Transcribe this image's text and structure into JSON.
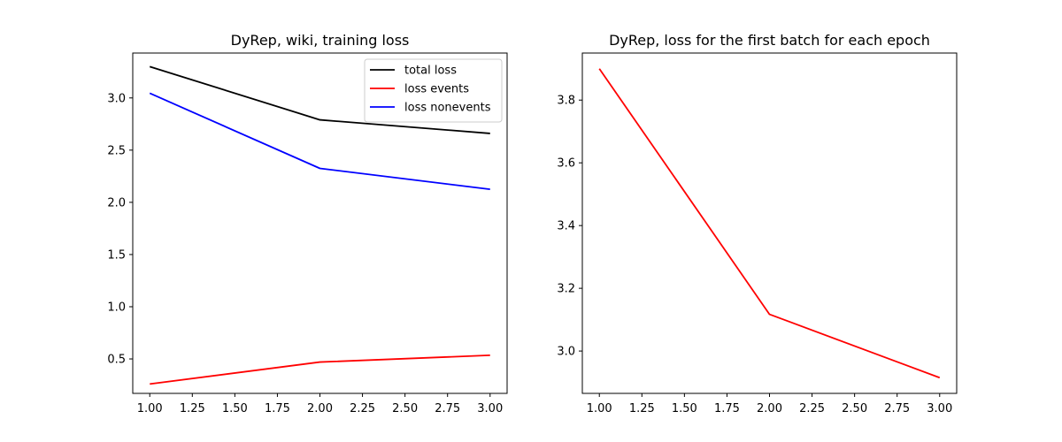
{
  "chart_data": [
    {
      "type": "line",
      "title": "DyRep, wiki, training loss",
      "xlabel": "",
      "ylabel": "",
      "xlim": [
        0.9,
        3.1
      ],
      "ylim": [
        0.17,
        3.43
      ],
      "xticks": [
        1.0,
        1.25,
        1.5,
        1.75,
        2.0,
        2.25,
        2.5,
        2.75,
        3.0
      ],
      "xtick_labels": [
        "1.00",
        "1.25",
        "1.50",
        "1.75",
        "2.00",
        "2.25",
        "2.50",
        "2.75",
        "3.00"
      ],
      "yticks": [
        0.5,
        1.0,
        1.5,
        2.0,
        2.5,
        3.0
      ],
      "ytick_labels": [
        "0.5",
        "1.0",
        "1.5",
        "2.0",
        "2.5",
        "3.0"
      ],
      "legend_position": "top-right",
      "grid": false,
      "x": [
        1,
        2,
        3
      ],
      "series": [
        {
          "name": "total loss",
          "color": "#000000",
          "values": [
            3.3,
            2.79,
            2.66
          ]
        },
        {
          "name": "loss events",
          "color": "#ff0000",
          "values": [
            0.26,
            0.47,
            0.535
          ]
        },
        {
          "name": "loss nonevents",
          "color": "#0000ff",
          "values": [
            3.045,
            2.325,
            2.125
          ]
        }
      ]
    },
    {
      "type": "line",
      "title": "DyRep, loss for the first batch for each epoch",
      "xlabel": "",
      "ylabel": "",
      "xlim": [
        0.9,
        3.1
      ],
      "ylim": [
        2.865,
        3.95
      ],
      "xticks": [
        1.0,
        1.25,
        1.5,
        1.75,
        2.0,
        2.25,
        2.5,
        2.75,
        3.0
      ],
      "xtick_labels": [
        "1.00",
        "1.25",
        "1.50",
        "1.75",
        "2.00",
        "2.25",
        "2.50",
        "2.75",
        "3.00"
      ],
      "yticks": [
        3.0,
        3.2,
        3.4,
        3.6,
        3.8
      ],
      "ytick_labels": [
        "3.0",
        "3.2",
        "3.4",
        "3.6",
        "3.8"
      ],
      "grid": false,
      "x": [
        1,
        2,
        3
      ],
      "series": [
        {
          "name": "",
          "color": "#ff0000",
          "values": [
            3.9,
            3.117,
            2.915
          ]
        }
      ]
    }
  ]
}
